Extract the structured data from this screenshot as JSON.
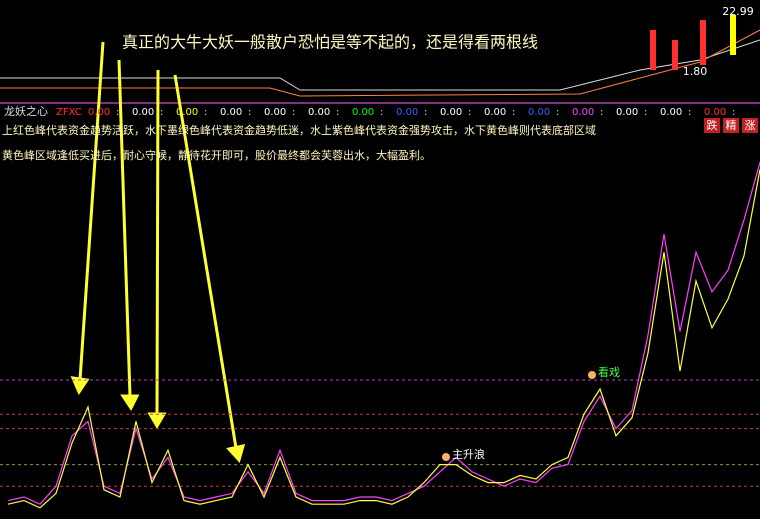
{
  "chart_data": {
    "type": "line",
    "title": "真正的大牛大妖一般散户恐怕是等不起的，还是得看两根线",
    "indicator_name": "龙妖之心",
    "indicator_code": "ZFXC",
    "separator": ":",
    "readouts": [
      {
        "text": "0.00",
        "color": "#ff3030"
      },
      {
        "text": "0.00",
        "color": "#ffffff"
      },
      {
        "text": "0.00",
        "color": "#ffff00"
      },
      {
        "text": "0.00",
        "color": "#ffffff"
      },
      {
        "text": "0.00",
        "color": "#ffffff"
      },
      {
        "text": "0.00",
        "color": "#ffffff"
      },
      {
        "text": "0.00",
        "color": "#00ff00"
      },
      {
        "text": "0.00",
        "color": "#3060ff"
      },
      {
        "text": "0.00",
        "color": "#ffffff"
      },
      {
        "text": "0.00",
        "color": "#ffffff"
      },
      {
        "text": "0.00",
        "color": "#3060ff"
      },
      {
        "text": "0.00",
        "color": "#ff40ff"
      },
      {
        "text": "0.00",
        "color": "#ffffff"
      },
      {
        "text": "0.00",
        "color": "#ffffff"
      },
      {
        "text": "0.00",
        "color": "#ff3030"
      }
    ],
    "descriptions": [
      "上红色峰代表资金趋势活跃，水下墨绿色峰代表资金趋势低迷，水上紫色峰代表资金强势攻击，水下黄色峰则代表底部区域",
      "黄色峰区域逢低买进后，耐心守候，静待花开即可，股价最终都会芙蓉出水，大幅盈利。"
    ],
    "price_labels": [
      "22.99",
      "1.80",
      "跌",
      "精",
      "涨"
    ],
    "annotations": [
      "主升浪",
      "看戏"
    ],
    "categories": [
      null,
      null,
      null,
      null,
      null,
      null,
      null,
      null,
      null,
      null,
      null,
      null,
      null,
      null,
      null,
      null,
      null,
      null,
      null,
      null,
      null,
      null,
      null,
      null,
      null,
      null,
      null,
      null,
      null,
      null,
      null,
      null,
      null,
      null,
      null,
      null,
      null,
      null,
      null,
      null,
      null,
      null,
      null,
      null,
      null,
      null,
      null,
      null
    ],
    "ylim": [
      0,
      100
    ],
    "hlines": [
      {
        "value": 37.5,
        "color": "#c040c0"
      },
      {
        "value": 28,
        "color": "#c04040"
      },
      {
        "value": 24,
        "color": "#c04040"
      },
      {
        "value": 14,
        "color": "#70a040"
      },
      {
        "value": 8,
        "color": "#c04040"
      }
    ],
    "series": [
      {
        "color": "#ff40ff",
        "values": [
          4,
          5,
          3,
          8,
          22,
          26,
          8,
          6,
          24,
          10,
          16,
          5,
          4,
          5,
          6,
          12,
          6,
          18,
          6,
          4,
          4,
          4,
          5,
          5,
          4,
          6,
          8,
          12,
          16,
          12,
          10,
          8,
          10,
          9,
          13,
          14,
          26,
          33,
          24,
          29,
          50,
          78,
          51,
          73,
          62,
          68,
          82,
          98
        ]
      },
      {
        "color": "#ffff40",
        "values": [
          3,
          4,
          2,
          6,
          20,
          30,
          7,
          5,
          26,
          9,
          18,
          4,
          3,
          4,
          5,
          14,
          5,
          16,
          5,
          3,
          3,
          3,
          4,
          4,
          3,
          5,
          9,
          14,
          14,
          11,
          9,
          9,
          11,
          10,
          14,
          16,
          28,
          35,
          22,
          27,
          45,
          73,
          40,
          65,
          52,
          60,
          72,
          96
        ]
      }
    ]
  }
}
